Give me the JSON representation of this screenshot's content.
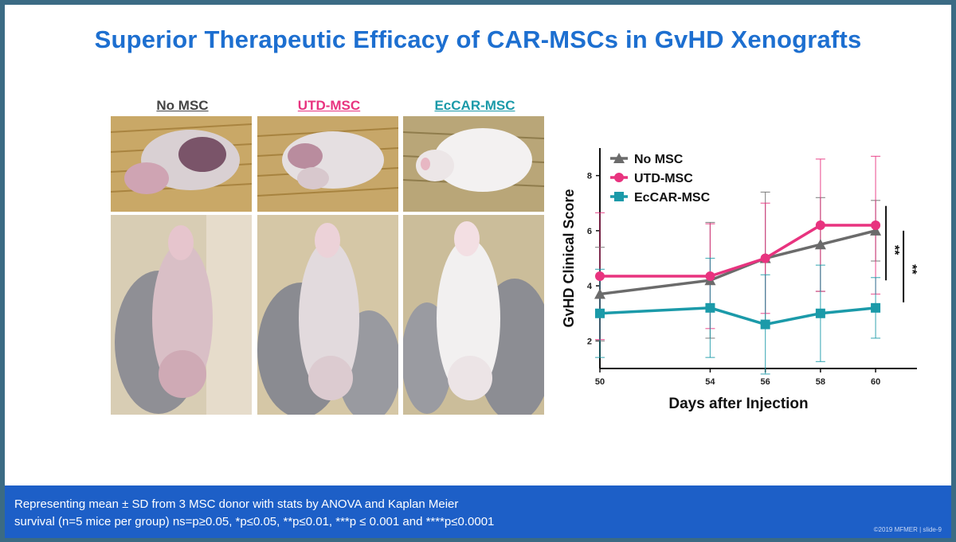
{
  "slide": {
    "title": "Superior Therapeutic Efficacy of CAR-MSCs in GvHD Xenografts"
  },
  "photo_panels": [
    {
      "label": "No MSC",
      "color": "#444444"
    },
    {
      "label": "UTD-MSC",
      "color": "#e8337f"
    },
    {
      "label": "EcCAR-MSC",
      "color": "#1b9aa9"
    }
  ],
  "colors": {
    "title": "#1d6fd0",
    "footer": "#1d5fc7"
  },
  "chart_data": {
    "type": "line",
    "x": [
      50,
      54,
      56,
      58,
      60
    ],
    "xlabel": "Days after Injection",
    "ylabel": "GvHD Clinical Score",
    "xlim": [
      50,
      61.5
    ],
    "ylim": [
      1,
      9
    ],
    "yticks": [
      2,
      4,
      6,
      8
    ],
    "legend_position": "top-left",
    "significance": [
      "**",
      "**"
    ],
    "series": [
      {
        "name": "No MSC",
        "color": "#6b6b6b",
        "marker": "triangle",
        "values": [
          3.7,
          4.2,
          5.0,
          5.5,
          6.0
        ],
        "sd": [
          1.7,
          2.1,
          2.4,
          1.7,
          1.1
        ]
      },
      {
        "name": "UTD-MSC",
        "color": "#e8337f",
        "marker": "circle",
        "values": [
          4.35,
          4.35,
          5.0,
          6.2,
          6.2
        ],
        "sd": [
          2.3,
          1.9,
          2.0,
          2.4,
          2.5
        ]
      },
      {
        "name": "EcCAR-MSC",
        "color": "#1b9aa9",
        "marker": "square",
        "values": [
          3.0,
          3.2,
          2.6,
          3.0,
          3.2
        ],
        "sd": [
          1.6,
          1.8,
          1.8,
          1.75,
          1.1
        ]
      }
    ]
  },
  "footer": {
    "line1": "Representing mean ± SD from 3 MSC donor with stats by ANOVA and Kaplan Meier",
    "line2": "survival (n=5 mice per group) ns=p≥0.05, *p≤0.05, **p≤0.01, ***p ≤ 0.001 and ****p≤0.0001",
    "copyright": "©2019 MFMER  |  slide-9"
  }
}
